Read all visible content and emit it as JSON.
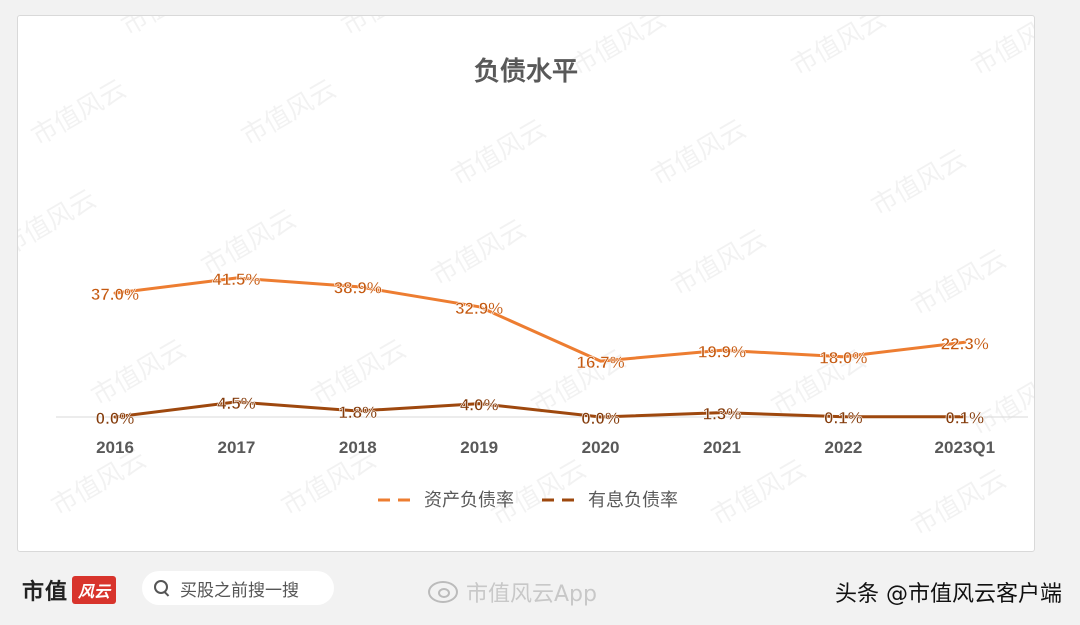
{
  "chart_data": {
    "type": "line",
    "title": "负债水平",
    "categories": [
      "2016",
      "2017",
      "2018",
      "2019",
      "2020",
      "2021",
      "2022",
      "2023Q1"
    ],
    "series": [
      {
        "name": "资产负债率",
        "values": [
          37.0,
          41.5,
          38.9,
          32.9,
          16.7,
          19.9,
          18.0,
          22.3
        ],
        "labels": [
          "37.0%",
          "41.5%",
          "38.9%",
          "32.9%",
          "16.7%",
          "19.9%",
          "18.0%",
          "22.3%"
        ],
        "color": "#ed7d31"
      },
      {
        "name": "有息负债率",
        "values": [
          0.0,
          4.5,
          1.8,
          4.0,
          0.0,
          1.3,
          0.1,
          0.1
        ],
        "labels": [
          "0.0%",
          "4.5%",
          "1.8%",
          "4.0%",
          "0.0%",
          "1.3%",
          "0.1%",
          "0.1%"
        ],
        "color": "#9e480e"
      }
    ],
    "ylim": [
      0,
      45
    ],
    "grid": false,
    "legend": "bottom",
    "watermark": "市值风云"
  },
  "footer": {
    "logo_text": "市值",
    "logo_badge": "风云",
    "search_placeholder": "买股之前搜一搜",
    "weibo_account": "市值风云App",
    "source": "头条 @市值风云客户端"
  }
}
